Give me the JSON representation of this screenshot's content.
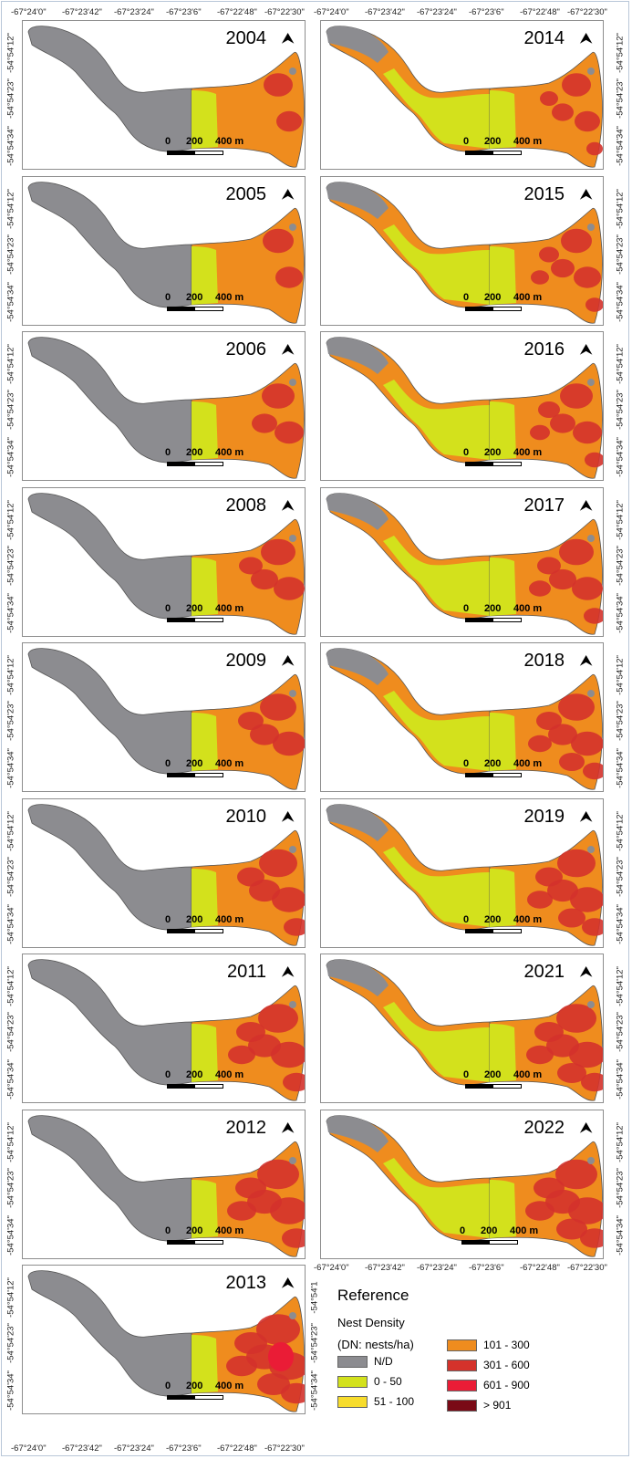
{
  "years_left": [
    "2004",
    "2005",
    "2006",
    "2008",
    "2009",
    "2010",
    "2011",
    "2012",
    "2013"
  ],
  "years_right": [
    "2014",
    "2015",
    "2016",
    "2017",
    "2018",
    "2019",
    "2021",
    "2022"
  ],
  "lon_ticks": [
    "-67°24'0\"",
    "-67°23'42\"",
    "-67°23'24\"",
    "-67°23'6\"",
    "-67°22'48\"",
    "-67°22'30\""
  ],
  "lat_ticks": [
    "-54°54'12\"",
    "-54°54'23\"",
    "-54°54'34\""
  ],
  "lat_ticks_extra": [
    "-54°54'1",
    "-54°54'23\"",
    "-54°54'34\""
  ],
  "north_symbol": "⮝",
  "scale": {
    "zero": "0",
    "mid": "200",
    "end": "400 m"
  },
  "legend": {
    "title": "Reference",
    "subtitle": "Nest Density",
    "units": "(DN: nests/ha)",
    "items": [
      {
        "label": "N/D",
        "color": "#8c8c90"
      },
      {
        "label": "0 - 50",
        "color": "#d3e11c"
      },
      {
        "label": "51 - 100",
        "color": "#f7dc2c"
      },
      {
        "label": "101 - 300",
        "color": "#ef8c1e"
      },
      {
        "label": "301 - 600",
        "color": "#d4322b"
      },
      {
        "label": "601 - 900",
        "color": "#ea1c36"
      },
      {
        "label": "> 901",
        "color": "#7a0a16"
      }
    ]
  },
  "colors": {
    "nd": "#8c8c90",
    "low": "#d3e11c",
    "mid_low": "#f7dc2c",
    "mid": "#ef8c1e",
    "high": "#d4322b",
    "very_high": "#ea1c36"
  }
}
